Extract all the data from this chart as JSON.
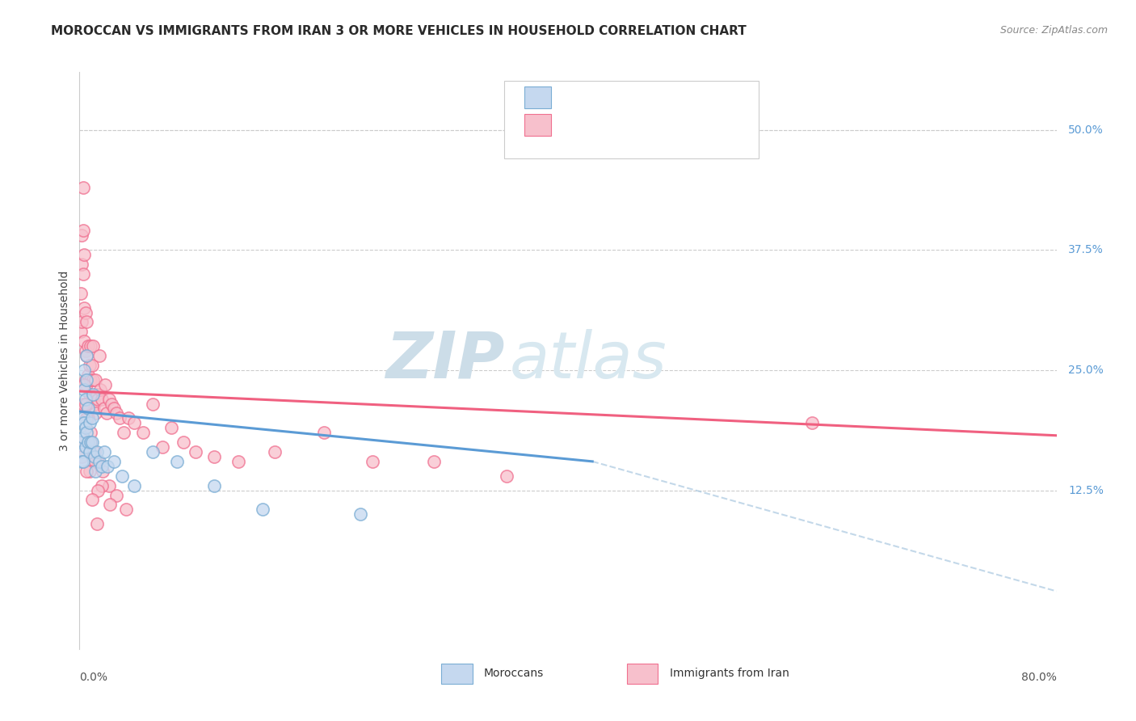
{
  "title": "MOROCCAN VS IMMIGRANTS FROM IRAN 3 OR MORE VEHICLES IN HOUSEHOLD CORRELATION CHART",
  "source": "Source: ZipAtlas.com",
  "ylabel": "3 or more Vehicles in Household",
  "right_yticks": [
    "50.0%",
    "37.5%",
    "25.0%",
    "12.5%"
  ],
  "right_ytick_vals": [
    0.5,
    0.375,
    0.25,
    0.125
  ],
  "color_moroccan_fill": "#c5d8ef",
  "color_moroccan_edge": "#7aadd4",
  "color_iran_fill": "#f7c0cc",
  "color_iran_edge": "#f07090",
  "color_moroccan_line": "#5b9bd5",
  "color_iran_line": "#f06080",
  "color_dashed": "#aac8e0",
  "color_right_labels": "#5b9bd5",
  "watermark_zip_color": "#c8dff0",
  "watermark_atlas_color": "#d8eaf5",
  "grid_color": "#cccccc",
  "moroccan_x": [
    0.001,
    0.002,
    0.002,
    0.002,
    0.003,
    0.003,
    0.003,
    0.004,
    0.004,
    0.004,
    0.005,
    0.005,
    0.005,
    0.006,
    0.006,
    0.006,
    0.007,
    0.007,
    0.008,
    0.008,
    0.009,
    0.01,
    0.01,
    0.011,
    0.012,
    0.013,
    0.014,
    0.016,
    0.018,
    0.02,
    0.023,
    0.028,
    0.035,
    0.045,
    0.06,
    0.08,
    0.11,
    0.15,
    0.23
  ],
  "moroccan_y": [
    0.175,
    0.195,
    0.165,
    0.155,
    0.2,
    0.18,
    0.155,
    0.25,
    0.23,
    0.195,
    0.22,
    0.19,
    0.17,
    0.265,
    0.24,
    0.185,
    0.21,
    0.175,
    0.195,
    0.165,
    0.175,
    0.2,
    0.175,
    0.225,
    0.16,
    0.145,
    0.165,
    0.155,
    0.15,
    0.165,
    0.15,
    0.155,
    0.14,
    0.13,
    0.165,
    0.155,
    0.13,
    0.105,
    0.1
  ],
  "iran_x": [
    0.001,
    0.001,
    0.002,
    0.002,
    0.002,
    0.003,
    0.003,
    0.003,
    0.004,
    0.004,
    0.004,
    0.005,
    0.005,
    0.005,
    0.006,
    0.006,
    0.006,
    0.007,
    0.007,
    0.007,
    0.008,
    0.008,
    0.009,
    0.009,
    0.01,
    0.01,
    0.011,
    0.011,
    0.012,
    0.013,
    0.013,
    0.014,
    0.015,
    0.016,
    0.017,
    0.018,
    0.02,
    0.021,
    0.022,
    0.024,
    0.026,
    0.028,
    0.03,
    0.033,
    0.036,
    0.04,
    0.045,
    0.052,
    0.06,
    0.068,
    0.075,
    0.085,
    0.095,
    0.11,
    0.13,
    0.16,
    0.2,
    0.24,
    0.29,
    0.35,
    0.003,
    0.005,
    0.007,
    0.009,
    0.012,
    0.015,
    0.019,
    0.024,
    0.03,
    0.038,
    0.004,
    0.006,
    0.009,
    0.013,
    0.018,
    0.002,
    0.008,
    0.015,
    0.025,
    0.6,
    0.003,
    0.006,
    0.01,
    0.014
  ],
  "iran_y": [
    0.29,
    0.33,
    0.39,
    0.36,
    0.3,
    0.44,
    0.395,
    0.35,
    0.37,
    0.315,
    0.28,
    0.31,
    0.27,
    0.24,
    0.3,
    0.265,
    0.235,
    0.275,
    0.245,
    0.215,
    0.255,
    0.225,
    0.275,
    0.24,
    0.255,
    0.22,
    0.275,
    0.24,
    0.215,
    0.24,
    0.205,
    0.225,
    0.22,
    0.265,
    0.23,
    0.22,
    0.21,
    0.235,
    0.205,
    0.22,
    0.215,
    0.21,
    0.205,
    0.2,
    0.185,
    0.2,
    0.195,
    0.185,
    0.215,
    0.17,
    0.19,
    0.175,
    0.165,
    0.16,
    0.155,
    0.165,
    0.185,
    0.155,
    0.155,
    0.14,
    0.215,
    0.215,
    0.2,
    0.185,
    0.165,
    0.155,
    0.145,
    0.13,
    0.12,
    0.105,
    0.235,
    0.2,
    0.175,
    0.155,
    0.13,
    0.16,
    0.145,
    0.125,
    0.11,
    0.195,
    0.175,
    0.145,
    0.115,
    0.09
  ],
  "xlim": [
    0.0,
    0.8
  ],
  "ylim": [
    -0.04,
    0.56
  ],
  "moroccan_line_x": [
    0.0,
    0.42
  ],
  "moroccan_line_y": [
    0.207,
    0.155
  ],
  "iran_line_x": [
    0.0,
    0.8
  ],
  "iran_line_y": [
    0.228,
    0.182
  ],
  "dashed_line_x": [
    0.42,
    0.8
  ],
  "dashed_line_y": [
    0.155,
    0.02
  ],
  "title_fontsize": 11,
  "source_fontsize": 9,
  "label_fontsize": 10
}
